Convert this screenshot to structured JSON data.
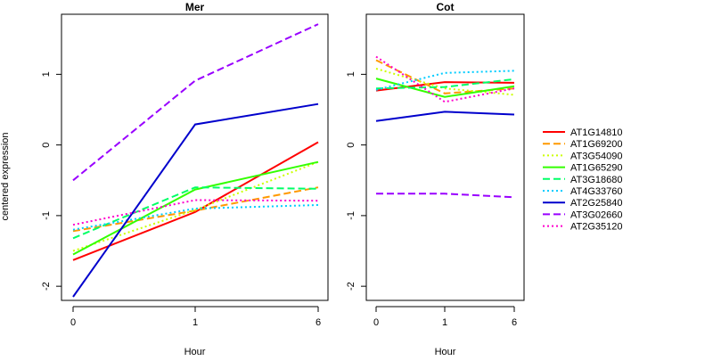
{
  "figure": {
    "ylabel": "centered expression",
    "xlabel": "Hour"
  },
  "legend": {
    "placement": "right",
    "entries": [
      {
        "label": "AT1G14810",
        "color": "#ff0000",
        "dash": "solid"
      },
      {
        "label": "AT1G69200",
        "color": "#ff9900",
        "dash": "dashed"
      },
      {
        "label": "AT3G54090",
        "color": "#ccff00",
        "dash": "dotted"
      },
      {
        "label": "AT1G65290",
        "color": "#33ff00",
        "dash": "solid"
      },
      {
        "label": "AT3G18680",
        "color": "#00ff66",
        "dash": "dashed"
      },
      {
        "label": "AT4G33760",
        "color": "#00ccff",
        "dash": "dotted"
      },
      {
        "label": "AT2G25840",
        "color": "#0000cc",
        "dash": "solid"
      },
      {
        "label": "AT3G02660",
        "color": "#9900ff",
        "dash": "dashed"
      },
      {
        "label": "AT2G35120",
        "color": "#ff00cc",
        "dash": "dotted"
      }
    ]
  },
  "chart_data": [
    {
      "type": "line",
      "title": "Mer",
      "xlabel": "Hour",
      "ylabel": "centered expression",
      "categories": [
        "0",
        "1",
        "6"
      ],
      "ylim": [
        -2.2,
        1.85
      ],
      "yticks": [
        -2,
        -1,
        0,
        1
      ],
      "grid": false,
      "series": [
        {
          "name": "AT1G14810",
          "values": [
            -1.63,
            -0.95,
            0.04
          ]
        },
        {
          "name": "AT1G69200",
          "values": [
            -1.22,
            -0.93,
            -0.6
          ]
        },
        {
          "name": "AT3G54090",
          "values": [
            -1.5,
            -0.92,
            -0.24
          ]
        },
        {
          "name": "AT1G65290",
          "values": [
            -1.55,
            -0.63,
            -0.24
          ]
        },
        {
          "name": "AT3G18680",
          "values": [
            -1.32,
            -0.6,
            -0.62
          ]
        },
        {
          "name": "AT4G33760",
          "values": [
            -1.2,
            -0.9,
            -0.85
          ]
        },
        {
          "name": "AT2G25840",
          "values": [
            -2.15,
            0.29,
            0.58
          ]
        },
        {
          "name": "AT3G02660",
          "values": [
            -0.5,
            0.91,
            1.71
          ]
        },
        {
          "name": "AT2G35120",
          "values": [
            -1.13,
            -0.78,
            -0.79
          ]
        }
      ]
    },
    {
      "type": "line",
      "title": "Cot",
      "xlabel": "Hour",
      "categories": [
        "0",
        "1",
        "6"
      ],
      "ylim": [
        -2.2,
        1.85
      ],
      "yticks": [
        -2,
        -1,
        0,
        1
      ],
      "grid": false,
      "series": [
        {
          "name": "AT1G14810",
          "values": [
            0.77,
            0.89,
            0.88
          ]
        },
        {
          "name": "AT1G69200",
          "values": [
            1.2,
            0.73,
            0.8
          ]
        },
        {
          "name": "AT3G54090",
          "values": [
            1.08,
            0.8,
            0.71
          ]
        },
        {
          "name": "AT1G65290",
          "values": [
            0.94,
            0.68,
            0.83
          ]
        },
        {
          "name": "AT3G18680",
          "values": [
            0.8,
            0.82,
            0.93
          ]
        },
        {
          "name": "AT4G33760",
          "values": [
            0.78,
            1.02,
            1.05
          ]
        },
        {
          "name": "AT2G25840",
          "values": [
            0.34,
            0.47,
            0.43
          ]
        },
        {
          "name": "AT3G02660",
          "values": [
            -0.69,
            -0.69,
            -0.74
          ]
        },
        {
          "name": "AT2G35120",
          "values": [
            1.25,
            0.61,
            0.8
          ]
        }
      ]
    }
  ]
}
